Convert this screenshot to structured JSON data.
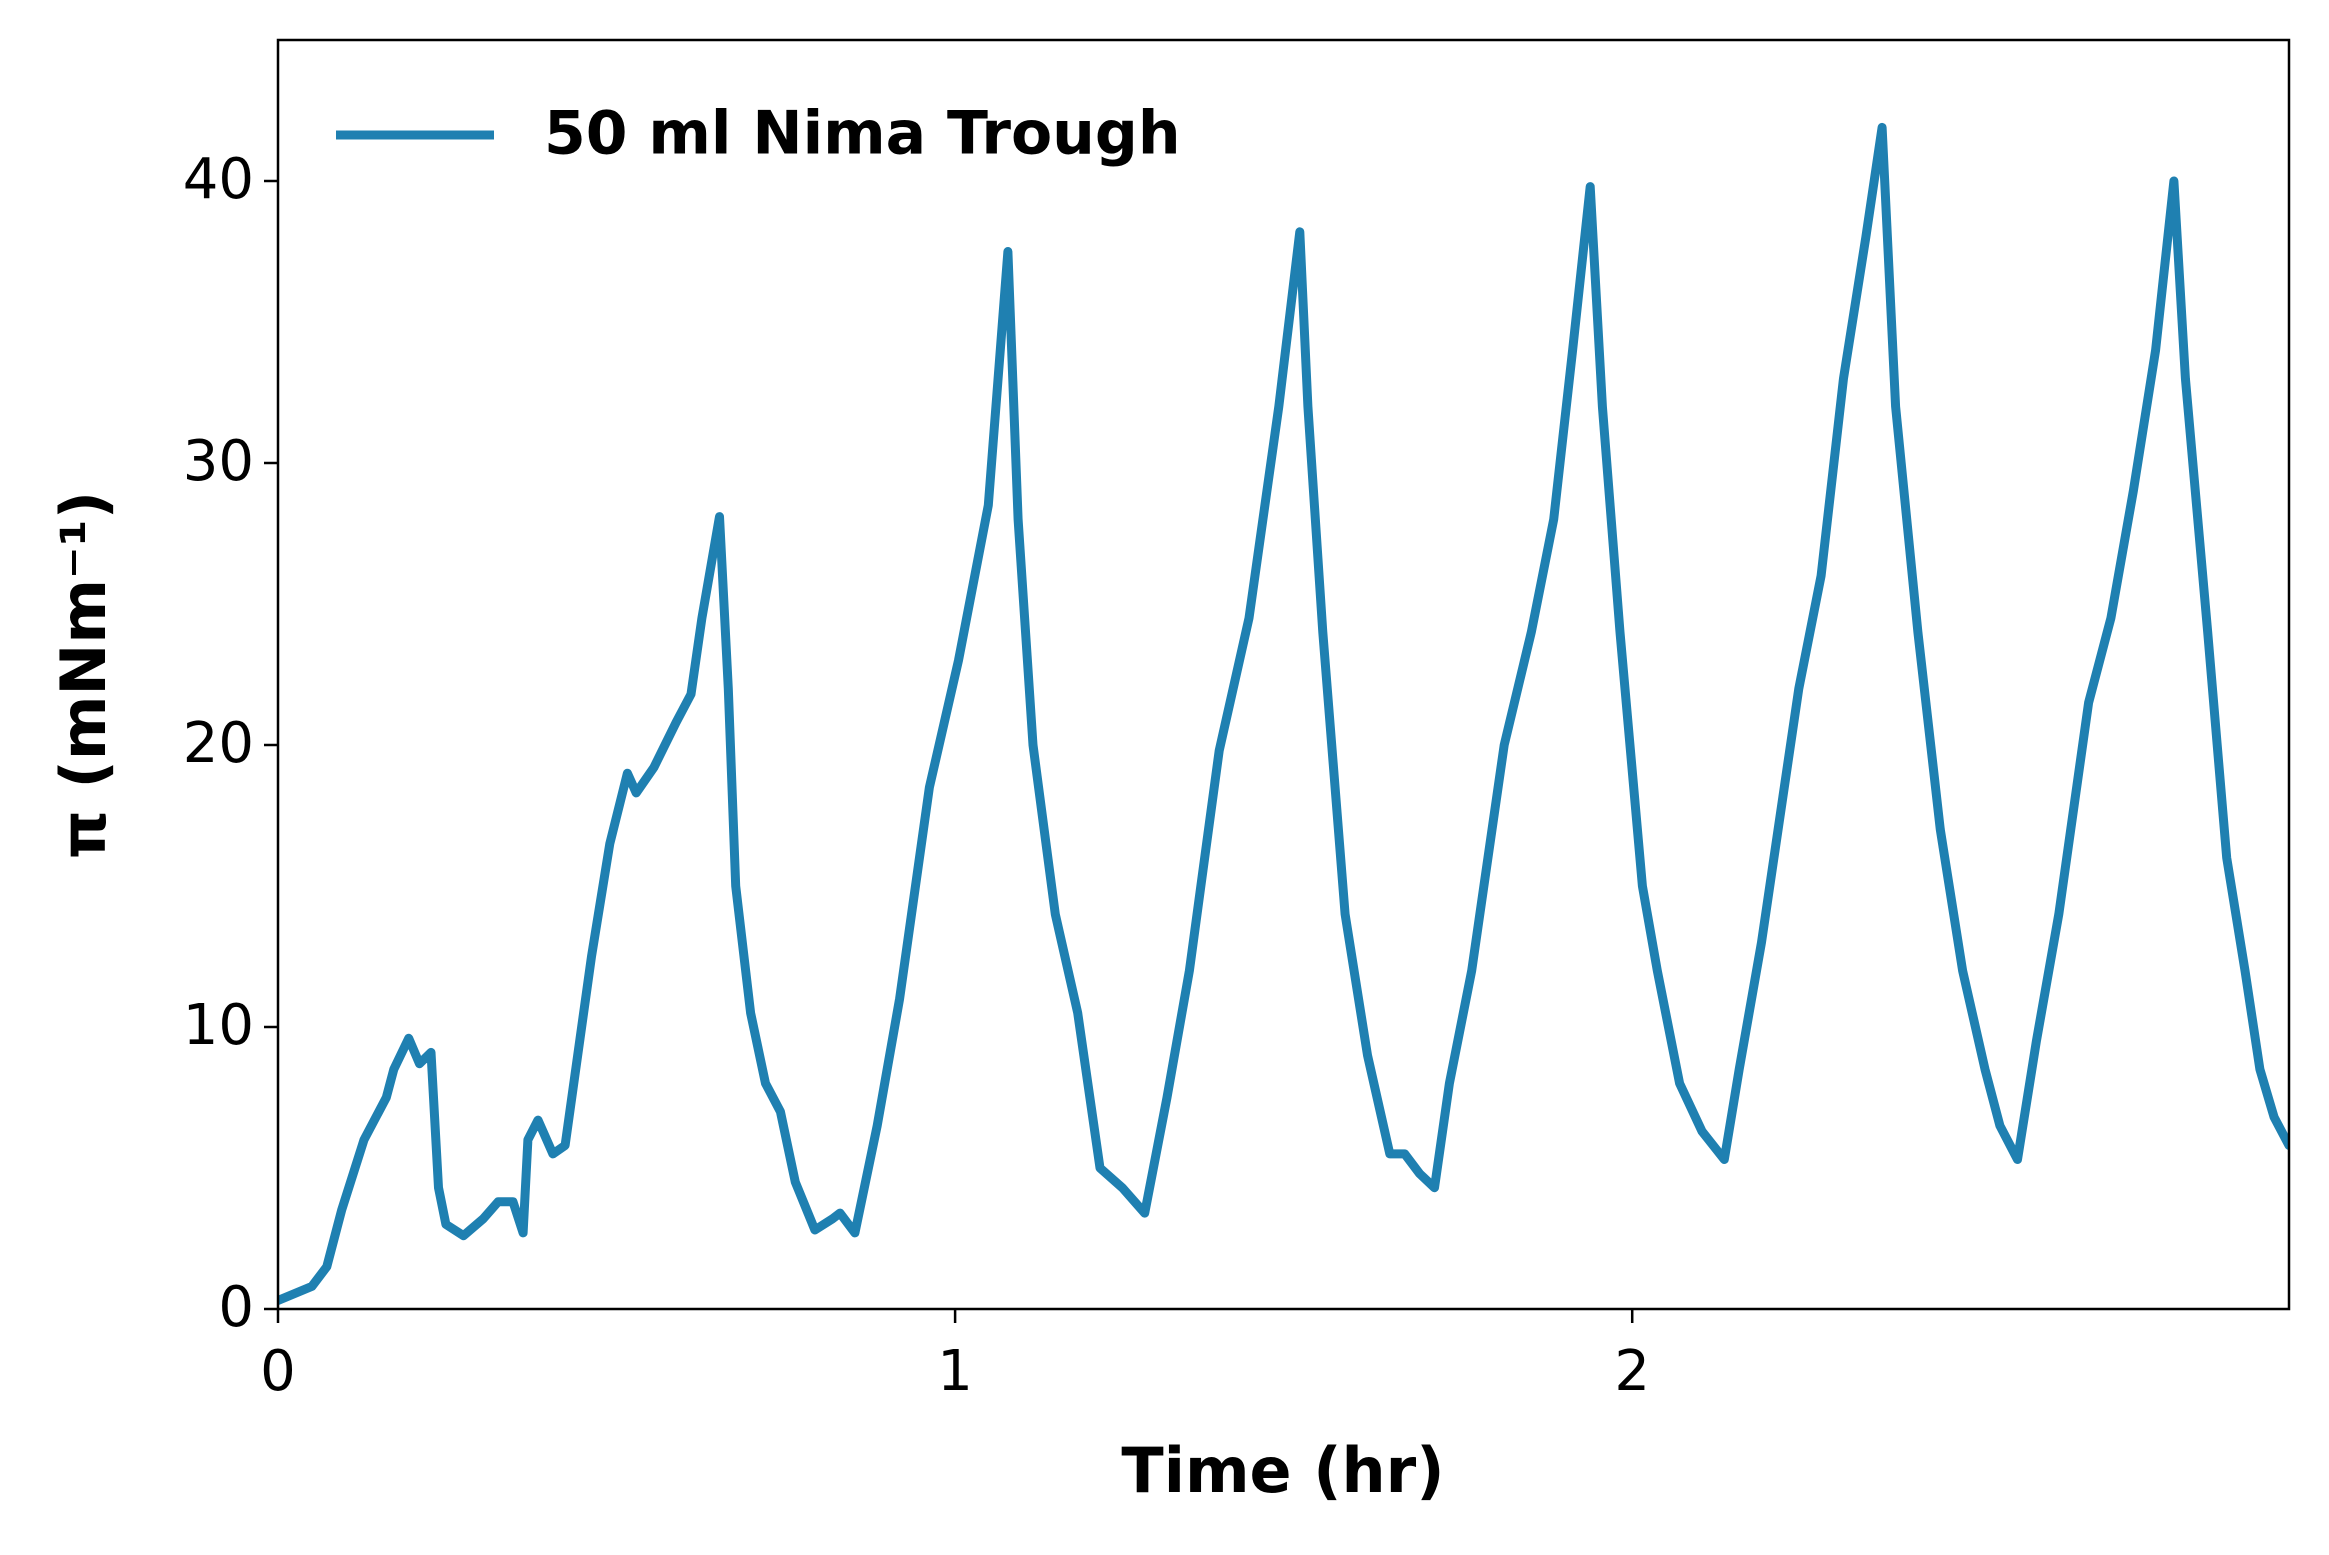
{
  "chart_data": {
    "type": "line",
    "xlabel": "Time (hr)",
    "ylabel": "π (mNm⁻¹)",
    "x": [
      0,
      0.05,
      0.072,
      0.094,
      0.127,
      0.16,
      0.171,
      0.193,
      0.209,
      0.226,
      0.237,
      0.248,
      0.274,
      0.303,
      0.325,
      0.347,
      0.362,
      0.369,
      0.384,
      0.406,
      0.424,
      0.463,
      0.49,
      0.516,
      0.529,
      0.555,
      0.588,
      0.61,
      0.626,
      0.652,
      0.665,
      0.676,
      0.698,
      0.72,
      0.742,
      0.764,
      0.793,
      0.819,
      0.83,
      0.852,
      0.885,
      0.918,
      0.962,
      1.005,
      1.049,
      1.078,
      1.093,
      1.115,
      1.148,
      1.181,
      1.214,
      1.247,
      1.28,
      1.313,
      1.346,
      1.39,
      1.434,
      1.478,
      1.509,
      1.521,
      1.543,
      1.576,
      1.609,
      1.642,
      1.664,
      1.686,
      1.708,
      1.73,
      1.763,
      1.811,
      1.851,
      1.884,
      1.912,
      1.938,
      1.956,
      1.982,
      2.015,
      2.037,
      2.07,
      2.103,
      2.136,
      2.158,
      2.191,
      2.246,
      2.279,
      2.312,
      2.345,
      2.369,
      2.389,
      2.422,
      2.455,
      2.488,
      2.521,
      2.543,
      2.569,
      2.597,
      2.63,
      2.674,
      2.707,
      2.74,
      2.773,
      2.8,
      2.817,
      2.85,
      2.878,
      2.905,
      2.927,
      2.948,
      2.97
    ],
    "series": [
      {
        "name": "50 ml Nima Trough",
        "color": "#1f80b1",
        "values": [
          0.3,
          0.8,
          1.5,
          3.5,
          6,
          7.5,
          8.5,
          9.6,
          8.7,
          9.1,
          4.3,
          3.0,
          2.6,
          3.2,
          3.8,
          3.8,
          2.7,
          6.0,
          6.7,
          5.5,
          5.8,
          12.5,
          16.5,
          19.0,
          18.3,
          19.2,
          20.8,
          21.8,
          24.5,
          28.1,
          22,
          15,
          10.5,
          8,
          7,
          4.5,
          2.8,
          3.2,
          3.4,
          2.7,
          6.5,
          11,
          18.5,
          23,
          28.5,
          37.5,
          28,
          20,
          14,
          10.5,
          5,
          4.3,
          3.4,
          7.5,
          12,
          19.8,
          24.5,
          32,
          38.2,
          32,
          24,
          14,
          9,
          5.5,
          5.5,
          4.8,
          4.3,
          8,
          12,
          20,
          24,
          28,
          34,
          39.8,
          32,
          24,
          15,
          12,
          8,
          6.3,
          5.3,
          8.5,
          13,
          22,
          26,
          33,
          38,
          41.9,
          32,
          24,
          17,
          12,
          8.5,
          6.5,
          5.3,
          9.5,
          14,
          21.5,
          24.5,
          29,
          34,
          40,
          33,
          24,
          16,
          12,
          8.5,
          6.8,
          5.8
        ]
      }
    ],
    "xlim": [
      0,
      2.97
    ],
    "xticks": [
      0,
      1,
      2
    ],
    "ylim": [
      0,
      45
    ],
    "yticks": [
      0,
      10,
      20,
      30,
      40
    ],
    "legend": "upper left"
  }
}
